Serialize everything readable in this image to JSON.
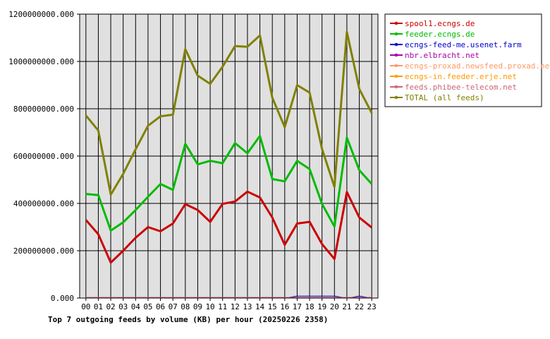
{
  "chart_data": {
    "type": "line",
    "title": "Top 7 outgoing feeds by volume (KB) per hour (20250226 2358)",
    "xlabel": "",
    "ylabel": "",
    "grid": true,
    "legend_position": "right",
    "categories": [
      "00",
      "01",
      "02",
      "03",
      "04",
      "05",
      "06",
      "07",
      "08",
      "09",
      "10",
      "11",
      "12",
      "13",
      "14",
      "15",
      "16",
      "17",
      "18",
      "19",
      "20",
      "21",
      "22",
      "23"
    ],
    "yticks": [
      "0.000",
      "200000000.000",
      "400000000.000",
      "600000000.000",
      "800000000.000",
      "1000000000.000",
      "1200000000.000"
    ],
    "ylim": [
      0,
      1200000000
    ],
    "series": [
      {
        "name": "spool1.ecngs.de",
        "color": "#cc0000",
        "width": 3,
        "values": [
          330000000,
          270000000,
          150000000,
          200000000,
          255000000,
          300000000,
          282000000,
          315000000,
          397000000,
          372000000,
          322000000,
          398000000,
          408000000,
          450000000,
          425000000,
          340000000,
          225000000,
          315000000,
          322000000,
          228000000,
          165000000,
          448000000,
          340000000,
          298000000
        ]
      },
      {
        "name": "feeder.ecngs.de",
        "color": "#00bb00",
        "width": 3,
        "values": [
          440000000,
          435000000,
          285000000,
          320000000,
          372000000,
          428000000,
          482000000,
          457000000,
          652000000,
          565000000,
          580000000,
          570000000,
          655000000,
          612000000,
          685000000,
          503000000,
          493000000,
          580000000,
          545000000,
          398000000,
          302000000,
          678000000,
          540000000,
          482000000
        ]
      },
      {
        "name": "ecngs-feed-me.usenet.farm",
        "color": "#0000cc",
        "width": 1,
        "values": [
          0,
          0,
          0,
          0,
          0,
          0,
          0,
          0,
          0,
          0,
          0,
          0,
          0,
          0,
          0,
          0,
          0,
          8000000,
          8000000,
          8000000,
          8000000,
          0,
          8000000,
          0
        ]
      },
      {
        "name": "nbr.elbracht.net",
        "color": "#aa00aa",
        "width": 1,
        "values": [
          0,
          0,
          0,
          0,
          0,
          0,
          0,
          0,
          0,
          0,
          0,
          0,
          0,
          0,
          0,
          0,
          0,
          0,
          0,
          0,
          0,
          0,
          0,
          0
        ]
      },
      {
        "name": "ecngs-proxad.newsfeed.proxad.net",
        "color": "#ff9966",
        "width": 1,
        "values": [
          2000000,
          2000000,
          2000000,
          2000000,
          2000000,
          2000000,
          2000000,
          2000000,
          2000000,
          2000000,
          2000000,
          2000000,
          2000000,
          2000000,
          2000000,
          2000000,
          2000000,
          2000000,
          2000000,
          2000000,
          2000000,
          2000000,
          2000000,
          2000000
        ]
      },
      {
        "name": "ecngs-in.feeder.erje.net",
        "color": "#ff9900",
        "width": 1,
        "values": [
          2000000,
          2000000,
          2000000,
          2000000,
          2000000,
          2000000,
          2000000,
          2000000,
          2000000,
          2000000,
          2000000,
          2000000,
          2000000,
          2000000,
          2000000,
          2000000,
          2000000,
          2000000,
          2000000,
          2000000,
          2000000,
          2000000,
          2000000,
          2000000
        ]
      },
      {
        "name": "feeds.phibee-telecom.net",
        "color": "#cc6677",
        "width": 1,
        "values": [
          3000000,
          3000000,
          3000000,
          3000000,
          3000000,
          3000000,
          3000000,
          3000000,
          3000000,
          3000000,
          3000000,
          3000000,
          3000000,
          3000000,
          3000000,
          3000000,
          3000000,
          3000000,
          3000000,
          3000000,
          3000000,
          3000000,
          3000000,
          3000000
        ]
      },
      {
        "name": "TOTAL (all feeds)",
        "color": "#808000",
        "width": 3,
        "values": [
          772000000,
          708000000,
          437000000,
          525000000,
          628000000,
          728000000,
          768000000,
          775000000,
          1052000000,
          940000000,
          905000000,
          978000000,
          1065000000,
          1062000000,
          1110000000,
          847000000,
          722000000,
          900000000,
          868000000,
          630000000,
          470000000,
          1125000000,
          883000000,
          782000000
        ]
      }
    ]
  }
}
